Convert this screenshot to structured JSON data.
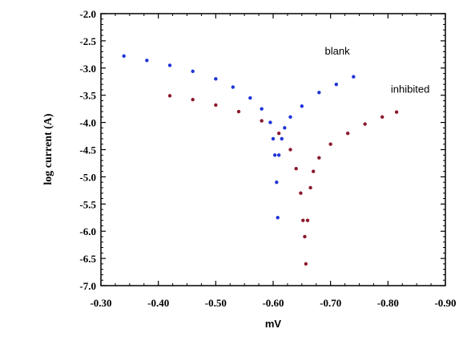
{
  "chart_data": {
    "type": "scatter",
    "xlabel": "mV",
    "ylabel": "log current (A)",
    "xlim": [
      -0.3,
      -0.9
    ],
    "ylim": [
      -7.0,
      -2.0
    ],
    "xticks": [
      "-0.30",
      "-0.40",
      "-0.50",
      "-0.60",
      "-0.70",
      "-0.80",
      "-0.90"
    ],
    "yticks": [
      "-2.0",
      "-2.5",
      "-3.0",
      "-3.5",
      "-4.0",
      "-4.5",
      "-5.0",
      "-5.5",
      "-6.0",
      "-6.5",
      "-7.0"
    ],
    "grid": false,
    "series": [
      {
        "name": "blank",
        "color": "#1f35d6",
        "points": [
          [
            -0.34,
            -2.78
          ],
          [
            -0.38,
            -2.86
          ],
          [
            -0.42,
            -2.95
          ],
          [
            -0.46,
            -3.06
          ],
          [
            -0.5,
            -3.2
          ],
          [
            -0.53,
            -3.35
          ],
          [
            -0.56,
            -3.55
          ],
          [
            -0.58,
            -3.75
          ],
          [
            -0.595,
            -4.0
          ],
          [
            -0.6,
            -4.3
          ],
          [
            -0.603,
            -4.6
          ],
          [
            -0.606,
            -5.1
          ],
          [
            -0.608,
            -5.75
          ],
          [
            -0.61,
            -4.6
          ],
          [
            -0.615,
            -4.3
          ],
          [
            -0.62,
            -4.1
          ],
          [
            -0.63,
            -3.9
          ],
          [
            -0.65,
            -3.7
          ],
          [
            -0.68,
            -3.45
          ],
          [
            -0.71,
            -3.3
          ],
          [
            -0.74,
            -3.16
          ]
        ]
      },
      {
        "name": "inhibited",
        "color": "#8b1a2e",
        "points": [
          [
            -0.42,
            -3.51
          ],
          [
            -0.46,
            -3.58
          ],
          [
            -0.5,
            -3.68
          ],
          [
            -0.54,
            -3.8
          ],
          [
            -0.58,
            -3.97
          ],
          [
            -0.61,
            -4.2
          ],
          [
            -0.63,
            -4.5
          ],
          [
            -0.64,
            -4.85
          ],
          [
            -0.648,
            -5.3
          ],
          [
            -0.652,
            -5.8
          ],
          [
            -0.655,
            -6.1
          ],
          [
            -0.657,
            -6.6
          ],
          [
            -0.66,
            -5.8
          ],
          [
            -0.665,
            -5.2
          ],
          [
            -0.67,
            -4.9
          ],
          [
            -0.68,
            -4.65
          ],
          [
            -0.7,
            -4.4
          ],
          [
            -0.73,
            -4.2
          ],
          [
            -0.76,
            -4.03
          ],
          [
            -0.79,
            -3.9
          ],
          [
            -0.815,
            -3.81
          ]
        ]
      }
    ],
    "annotations": [
      {
        "text": "blank",
        "x": -0.69,
        "y": -2.75
      },
      {
        "text": "inhibited",
        "x": -0.805,
        "y": -3.45
      }
    ]
  }
}
